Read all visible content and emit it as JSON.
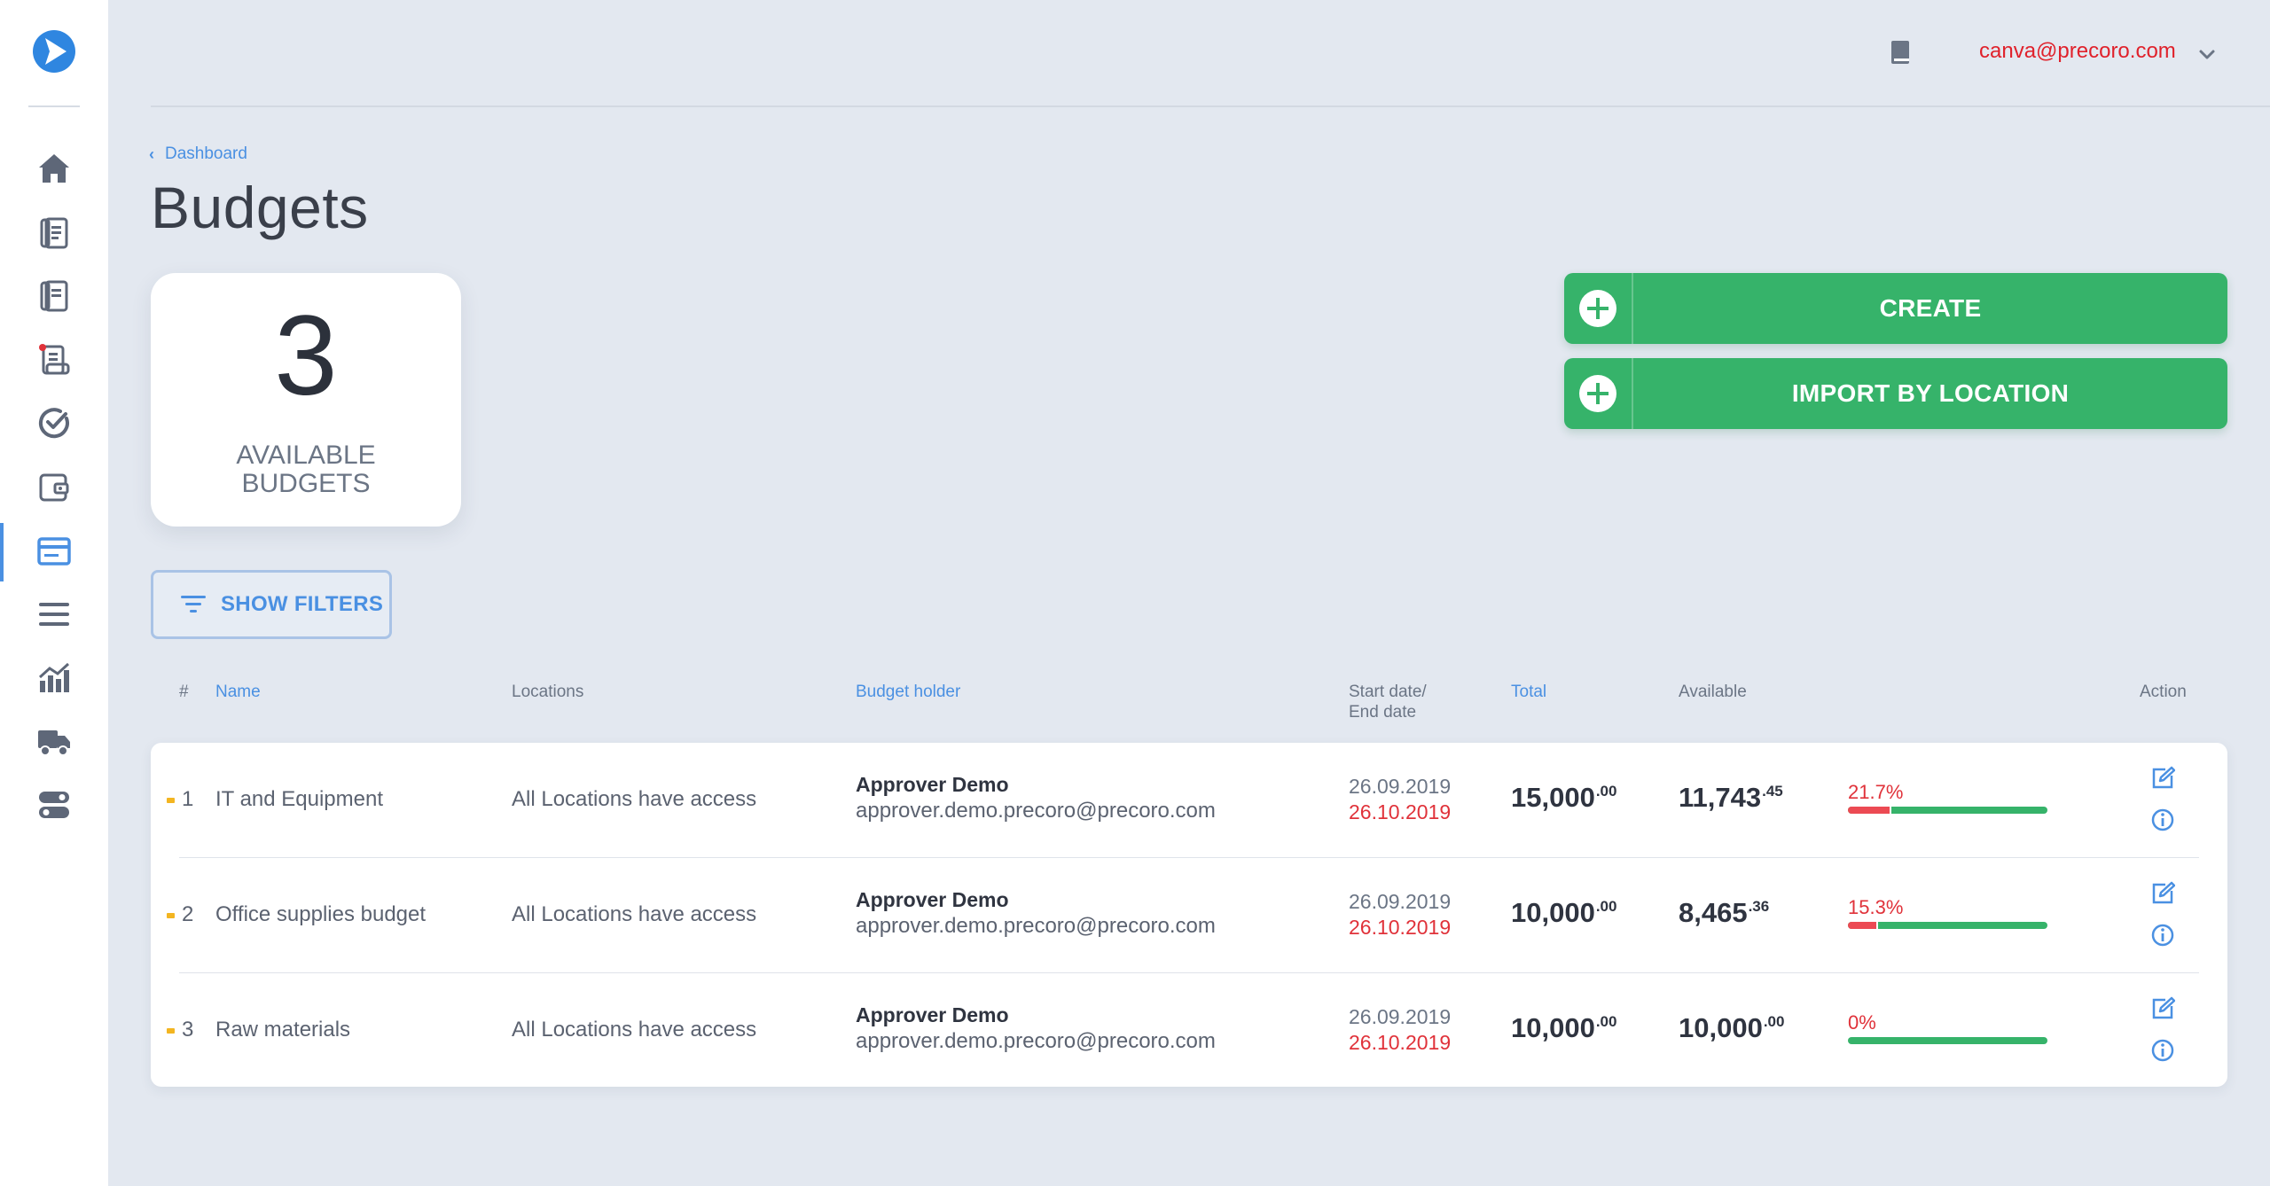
{
  "user": {
    "email": "canva@precoro.com"
  },
  "breadcrumb": {
    "label": "Dashboard"
  },
  "page": {
    "title": "Budgets"
  },
  "counter": {
    "value": "3",
    "label": "AVAILABLE BUDGETS"
  },
  "actions": {
    "create": "CREATE",
    "import": "IMPORT BY LOCATION"
  },
  "filters": {
    "label": "SHOW FILTERS"
  },
  "table": {
    "headers": {
      "num": "#",
      "name": "Name",
      "locations": "Locations",
      "holder": "Budget holder",
      "dates": "Start date/ End date",
      "total": "Total",
      "available": "Available",
      "action": "Action"
    },
    "rows": [
      {
        "num": "1",
        "name": "IT and Equipment",
        "locations": "All Locations have access",
        "holder_name": "Approver Demo",
        "holder_email": "approver.demo.precoro@precoro.com",
        "start": "26.09.2019",
        "end": "26.10.2019",
        "total_int": "15,000",
        "total_dec": ".00",
        "avail_int": "11,743",
        "avail_dec": ".45",
        "used_pct": "21.7%",
        "used_fraction": 0.217
      },
      {
        "num": "2",
        "name": "Office supplies budget",
        "locations": "All Locations have access",
        "holder_name": "Approver Demo",
        "holder_email": "approver.demo.precoro@precoro.com",
        "start": "26.09.2019",
        "end": "26.10.2019",
        "total_int": "10,000",
        "total_dec": ".00",
        "avail_int": "8,465",
        "avail_dec": ".36",
        "used_pct": "15.3%",
        "used_fraction": 0.153
      },
      {
        "num": "3",
        "name": "Raw materials",
        "locations": "All Locations have access",
        "holder_name": "Approver Demo",
        "holder_email": "approver.demo.precoro@precoro.com",
        "start": "26.09.2019",
        "end": "26.10.2019",
        "total_int": "10,000",
        "total_dec": ".00",
        "avail_int": "10,000",
        "avail_dec": ".00",
        "used_pct": "0%",
        "used_fraction": 0
      }
    ]
  },
  "colors": {
    "accent": "#4a90e2",
    "green": "#36b36a",
    "red": "#e0323a",
    "marker": "#f3b521"
  },
  "icons": {
    "sidebar": [
      "home-icon",
      "document-icon",
      "document-icon",
      "receipt-icon",
      "check-circle-icon",
      "wallet-icon",
      "budget-card-icon",
      "menu-icon",
      "analytics-icon",
      "truck-icon",
      "settings-toggle-icon"
    ],
    "row_actions": [
      "edit-icon",
      "info-icon"
    ]
  }
}
